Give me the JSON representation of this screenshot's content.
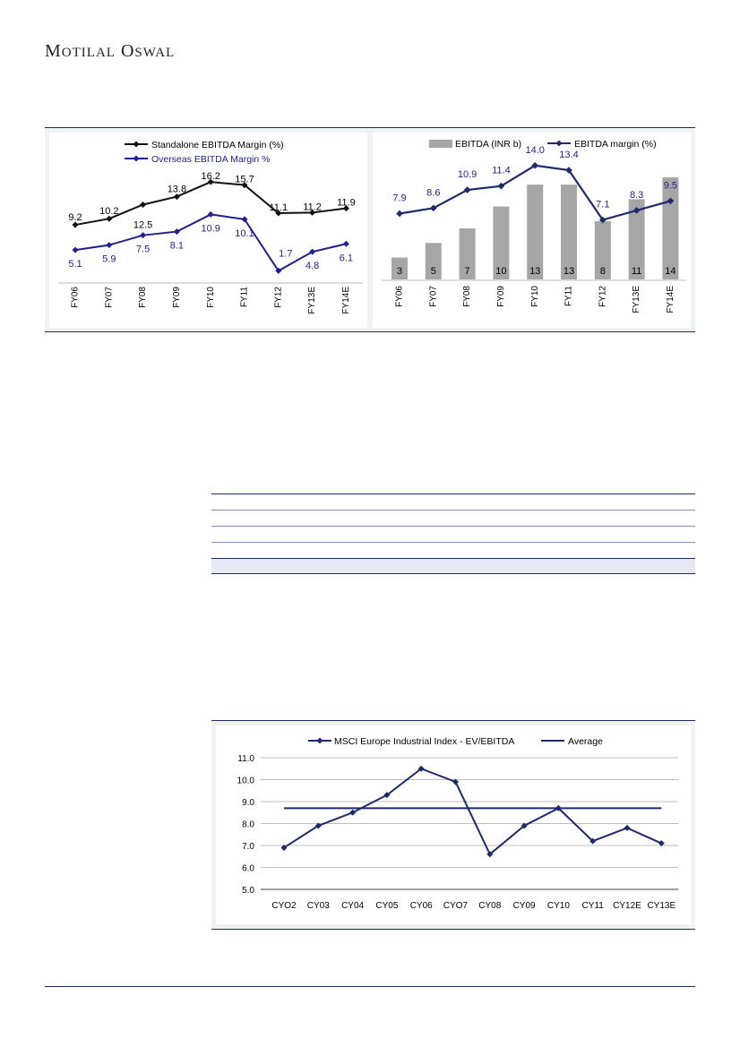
{
  "header": {
    "brand_first": "M",
    "brand_first_rest": "OTILAL",
    "brand_second": "O",
    "brand_second_rest": "SWAL"
  },
  "colors": {
    "navy": "#1c2b6b",
    "black": "#111111",
    "bar": "#a6a6a6",
    "blue_line": "#1f1f8f",
    "panel_bg": "#f2f2f2",
    "table_highlight": "#e6e9f4"
  },
  "chart_data": [
    {
      "type": "line",
      "categories": [
        "FY06",
        "FY07",
        "FY08",
        "FY09",
        "FY10",
        "FY11",
        "FY12",
        "FY13E",
        "FY14E"
      ],
      "series": [
        {
          "name": "Standalone EBITDA Margin (%)",
          "values": [
            9.2,
            10.2,
            12.5,
            13.8,
            16.2,
            15.7,
            11.1,
            11.2,
            11.9
          ],
          "labels": [
            "9.2",
            "10.2",
            "12.5",
            "13.8",
            "16.2",
            "15.7",
            "11.1",
            "11.2",
            "11.9"
          ]
        },
        {
          "name": "Overseas EBITDA Margin %",
          "values": [
            5.1,
            5.9,
            7.5,
            8.1,
            10.9,
            10.1,
            1.7,
            4.8,
            6.1
          ],
          "labels": [
            "5.1",
            "5.9",
            "7.5",
            "8.1",
            "10.9",
            "10.1",
            "1.7",
            "4.8",
            "6.1"
          ]
        }
      ],
      "ylim": [
        0,
        19
      ],
      "legend": "top"
    },
    {
      "type": "bar",
      "categories": [
        "FY06",
        "FY07",
        "FY08",
        "FY09",
        "FY10",
        "FY11",
        "FY12",
        "FY13E",
        "FY14E"
      ],
      "series": [
        {
          "name": "EBITDA (INR b)",
          "kind": "bar",
          "values": [
            3,
            5,
            7,
            10,
            13,
            13,
            8,
            11,
            14
          ],
          "labels": [
            "3",
            "5",
            "7",
            "10",
            "13",
            "13",
            "8",
            "11",
            "14"
          ]
        },
        {
          "name": "EBITDA  margin (%)",
          "kind": "line",
          "values": [
            7.9,
            8.6,
            10.9,
            11.4,
            14.0,
            13.4,
            7.1,
            8.3,
            9.5
          ],
          "labels": [
            "7.9",
            "8.6",
            "10.9",
            "11.4",
            "14.0",
            "13.4",
            "7.1",
            "8.3",
            "9.5"
          ]
        }
      ],
      "ylim": [
        0,
        15
      ],
      "legend": "top"
    },
    {
      "type": "line",
      "categories": [
        "CYO2",
        "CY03",
        "CY04",
        "CY05",
        "CY06",
        "CYO7",
        "CY08",
        "CY09",
        "CY10",
        "CY11",
        "CY12E",
        "CY13E"
      ],
      "series": [
        {
          "name": "MSCI Europe  Industrial Index - EV/EBITDA",
          "values": [
            6.9,
            7.9,
            8.5,
            9.3,
            10.5,
            9.9,
            6.6,
            7.9,
            8.7,
            7.2,
            7.8,
            7.1
          ]
        },
        {
          "name": "Average",
          "values": [
            8.7,
            8.7,
            8.7,
            8.7,
            8.7,
            8.7,
            8.7,
            8.7,
            8.7,
            8.7,
            8.7,
            8.7
          ]
        }
      ],
      "yticks": [
        "5.0",
        "6.0",
        "7.0",
        "8.0",
        "9.0",
        "10.0",
        "11.0"
      ],
      "ylim": [
        5,
        11
      ],
      "grid": true,
      "legend": "top"
    }
  ]
}
